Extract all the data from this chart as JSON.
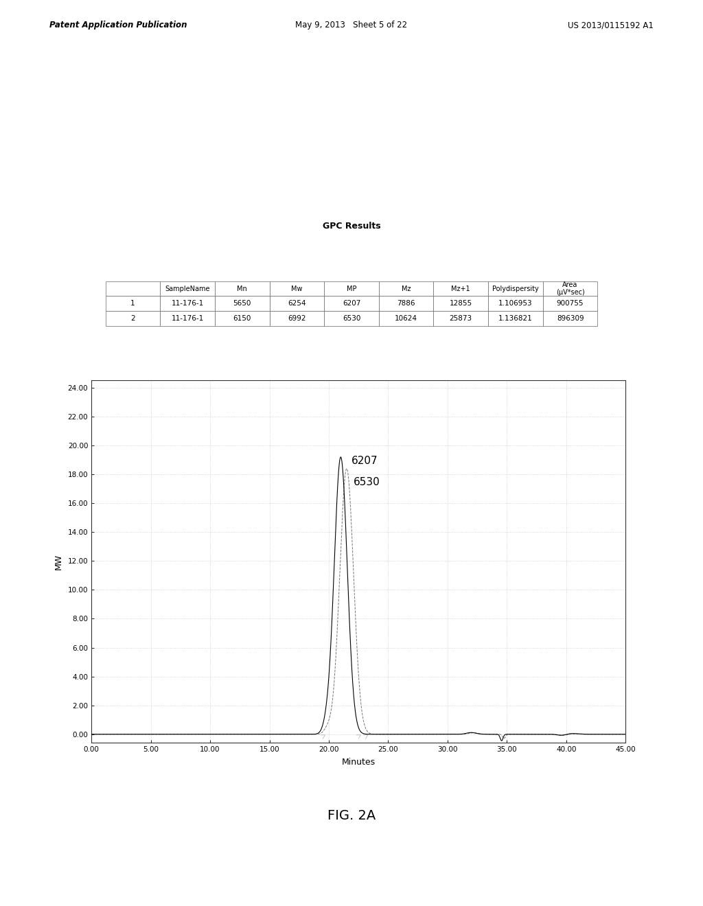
{
  "page_header_left": "Patent Application Publication",
  "page_header_center": "May 9, 2013   Sheet 5 of 22",
  "page_header_right": "US 2013/0115192 A1",
  "figure_label": "FIG. 2A",
  "table_title": "GPC Results",
  "table_headers": [
    "",
    "SampleName",
    "Mn",
    "Mw",
    "MP",
    "Mz",
    "Mz+1",
    "Polydispersity",
    "Area\n(μV*sec)"
  ],
  "table_rows": [
    [
      "1",
      "11-176-1",
      "5650",
      "6254",
      "6207",
      "7886",
      "12855",
      "1.106953",
      "900755"
    ],
    [
      "2",
      "11-176-1",
      "6150",
      "6992",
      "6530",
      "10624",
      "25873",
      "1.136821",
      "896309"
    ]
  ],
  "plot_xlabel": "Minutes",
  "plot_ylabel": "MW",
  "plot_xlim": [
    0.0,
    45.0
  ],
  "plot_ylim": [
    -0.6,
    24.5
  ],
  "plot_yticks": [
    0.0,
    2.0,
    4.0,
    6.0,
    8.0,
    10.0,
    12.0,
    14.0,
    16.0,
    18.0,
    20.0,
    22.0,
    24.0
  ],
  "plot_xticks": [
    0.0,
    5.0,
    10.0,
    15.0,
    20.0,
    25.0,
    30.0,
    35.0,
    40.0,
    45.0
  ],
  "peak1_label": "6207",
  "peak2_label": "6530",
  "background_color": "#ffffff",
  "line_color1": "#000000",
  "line_color2": "#777777",
  "grid_color": "#cccccc"
}
